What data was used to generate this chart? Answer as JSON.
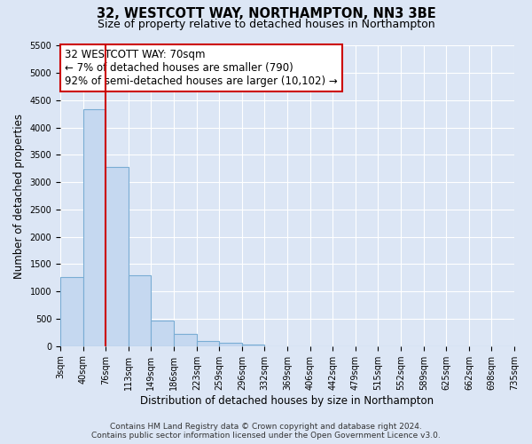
{
  "title": "32, WESTCOTT WAY, NORTHAMPTON, NN3 3BE",
  "subtitle": "Size of property relative to detached houses in Northampton",
  "xlabel": "Distribution of detached houses by size in Northampton",
  "ylabel": "Number of detached properties",
  "bin_edges": [
    3,
    40,
    76,
    113,
    149,
    186,
    223,
    259,
    296,
    332,
    369,
    406,
    442,
    479,
    515,
    552,
    589,
    625,
    662,
    698,
    735
  ],
  "bin_heights": [
    1270,
    4330,
    3280,
    1290,
    475,
    230,
    95,
    60,
    30,
    0,
    0,
    0,
    0,
    0,
    0,
    0,
    0,
    0,
    0,
    0
  ],
  "bar_color": "#c5d8f0",
  "bar_edge_color": "#7aadd4",
  "vline_x": 76,
  "vline_color": "#cc0000",
  "annotation_title": "32 WESTCOTT WAY: 70sqm",
  "annotation_line1": "← 7% of detached houses are smaller (790)",
  "annotation_line2": "92% of semi-detached houses are larger (10,102) →",
  "annotation_box_color": "#ffffff",
  "annotation_box_edge_color": "#cc0000",
  "ylim": [
    0,
    5500
  ],
  "yticks": [
    0,
    500,
    1000,
    1500,
    2000,
    2500,
    3000,
    3500,
    4000,
    4500,
    5000,
    5500
  ],
  "tick_labels": [
    "3sqm",
    "40sqm",
    "76sqm",
    "113sqm",
    "149sqm",
    "186sqm",
    "223sqm",
    "259sqm",
    "296sqm",
    "332sqm",
    "369sqm",
    "406sqm",
    "442sqm",
    "479sqm",
    "515sqm",
    "552sqm",
    "589sqm",
    "625sqm",
    "662sqm",
    "698sqm",
    "735sqm"
  ],
  "footer_line1": "Contains HM Land Registry data © Crown copyright and database right 2024.",
  "footer_line2": "Contains public sector information licensed under the Open Government Licence v3.0.",
  "bg_color": "#dce6f5",
  "plot_bg_color": "#dce6f5",
  "grid_color": "#ffffff",
  "title_fontsize": 10.5,
  "subtitle_fontsize": 9,
  "axis_label_fontsize": 8.5,
  "tick_fontsize": 7,
  "annotation_title_fontsize": 9,
  "annotation_fontsize": 8.5,
  "footer_fontsize": 6.5
}
